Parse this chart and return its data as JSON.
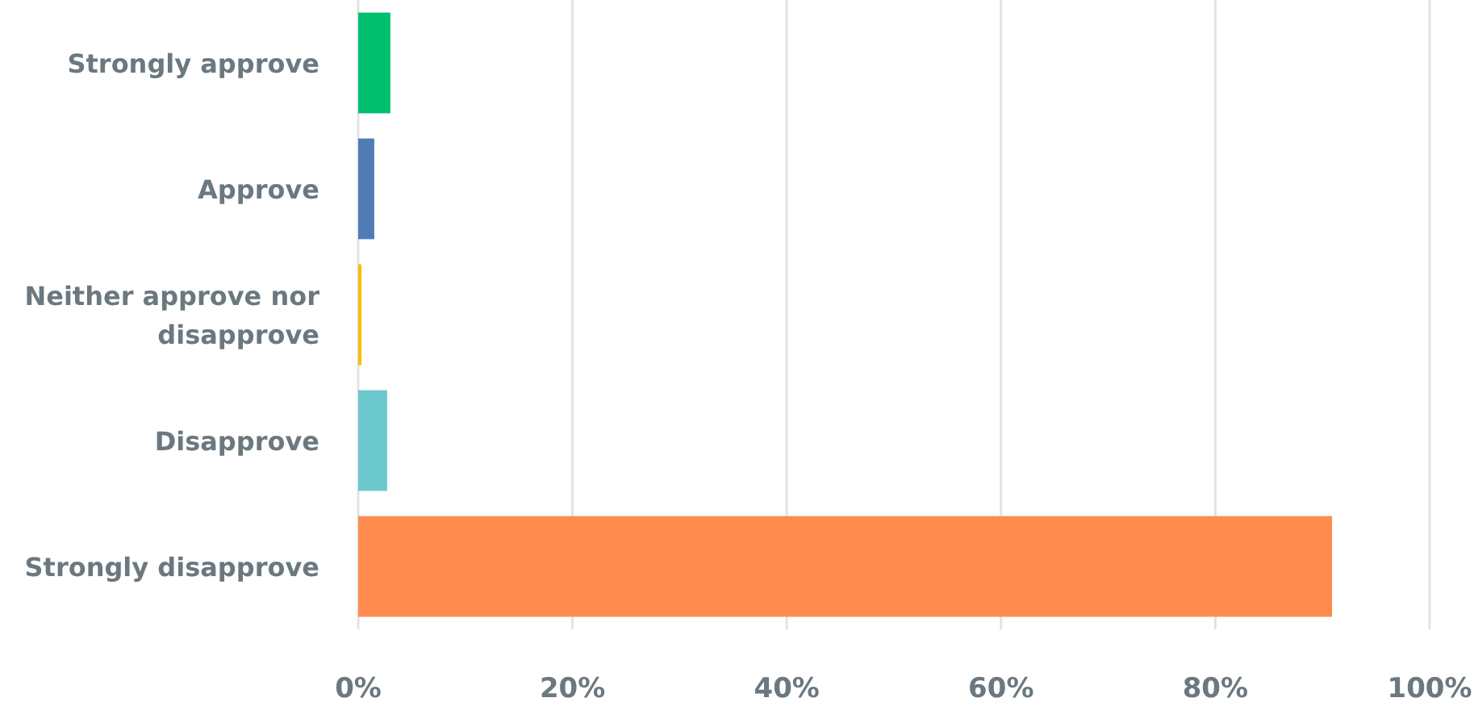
{
  "chart_data": {
    "type": "bar",
    "orientation": "horizontal",
    "categories": [
      "Strongly approve",
      "Approve",
      "Neither approve nor disapprove",
      "Disapprove",
      "Strongly disapprove"
    ],
    "values": [
      3.0,
      1.5,
      0.3,
      2.7,
      90.9
    ],
    "colors": [
      "#00bf6f",
      "#507cb6",
      "#f9be00",
      "#6bc8cd",
      "#ff8b4f"
    ],
    "xlim": [
      0,
      100
    ],
    "xticks": [
      {
        "value": 0,
        "label": "0%"
      },
      {
        "value": 20,
        "label": "20%"
      },
      {
        "value": 40,
        "label": "40%"
      },
      {
        "value": 60,
        "label": "60%"
      },
      {
        "value": 80,
        "label": "80%"
      },
      {
        "value": 100,
        "label": "100%"
      }
    ],
    "grid": "x"
  }
}
